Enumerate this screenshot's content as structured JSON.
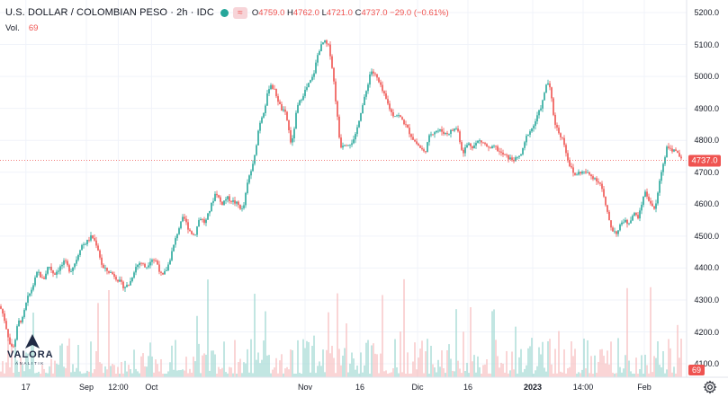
{
  "header": {
    "symbol_label": "U.S. DOLLAR / COLOMBIAN PESO · 2h · IDC",
    "compare_icon": "≈",
    "ohlc": [
      {
        "k": "O",
        "v": "4759.0"
      },
      {
        "k": "H",
        "v": "4762.0"
      },
      {
        "k": "L",
        "v": "4721.0"
      },
      {
        "k": "C",
        "v": "4737.0"
      }
    ],
    "change": "−29.0 (−0.61%)",
    "vol_label": "Vol.",
    "vol_value": "69"
  },
  "price_badge": "4737.0",
  "vol_badge": "69",
  "logo": {
    "name": "VALORA",
    "sub": "ANALITIK"
  },
  "icons": {
    "settings": "gear-icon",
    "status": "green-dot-icon",
    "compare": "compare-icon",
    "logo": "valora-logo-icon"
  },
  "colors": {
    "up": "#26a69a",
    "down": "#ef5350",
    "up_volume": "#a7dbd6",
    "down_volume": "#f7c3c4",
    "grid": "#f0f3fa",
    "last_price_line": "#ef5350"
  },
  "chart_data": {
    "type": "candlestick",
    "title": "U.S. DOLLAR / COLOMBIAN PESO · 2h · IDC",
    "ylim": [
      4080,
      5230
    ],
    "yticks": [
      "5200.0",
      "5100.0",
      "5000.0",
      "4900.0",
      "4800.0",
      "4700.0",
      "4600.0",
      "4500.0",
      "4400.0",
      "4300.0",
      "4200.0",
      "4100.0"
    ],
    "xticks": [
      {
        "label": "17",
        "bold": false
      },
      {
        "label": "Sep",
        "bold": false
      },
      {
        "label": "12:00",
        "bold": false
      },
      {
        "label": "Oct",
        "bold": false
      },
      {
        "label": "Nov",
        "bold": false
      },
      {
        "label": "16",
        "bold": false
      },
      {
        "label": "Dic",
        "bold": false
      },
      {
        "label": "16",
        "bold": false
      },
      {
        "label": "2023",
        "bold": true
      },
      {
        "label": "14:00",
        "bold": false
      },
      {
        "label": "Feb",
        "bold": false
      }
    ],
    "last_price": 4737.0,
    "last_volume": 69,
    "close_path": [
      [
        0,
        4280
      ],
      [
        4,
        4250
      ],
      [
        8,
        4200
      ],
      [
        12,
        4150
      ],
      [
        16,
        4160
      ],
      [
        20,
        4230
      ],
      [
        25,
        4240
      ],
      [
        30,
        4300
      ],
      [
        36,
        4340
      ],
      [
        42,
        4390
      ],
      [
        48,
        4360
      ],
      [
        54,
        4410
      ],
      [
        60,
        4380
      ],
      [
        66,
        4400
      ],
      [
        72,
        4420
      ],
      [
        78,
        4390
      ],
      [
        84,
        4420
      ],
      [
        90,
        4470
      ],
      [
        96,
        4480
      ],
      [
        102,
        4500
      ],
      [
        108,
        4470
      ],
      [
        114,
        4400
      ],
      [
        120,
        4390
      ],
      [
        126,
        4380
      ],
      [
        132,
        4360
      ],
      [
        138,
        4340
      ],
      [
        144,
        4350
      ],
      [
        150,
        4400
      ],
      [
        156,
        4420
      ],
      [
        162,
        4400
      ],
      [
        168,
        4430
      ],
      [
        174,
        4420
      ],
      [
        180,
        4370
      ],
      [
        186,
        4400
      ],
      [
        192,
        4460
      ],
      [
        198,
        4520
      ],
      [
        204,
        4560
      ],
      [
        210,
        4520
      ],
      [
        216,
        4500
      ],
      [
        222,
        4560
      ],
      [
        228,
        4540
      ],
      [
        234,
        4590
      ],
      [
        240,
        4640
      ],
      [
        246,
        4600
      ],
      [
        252,
        4620
      ],
      [
        258,
        4610
      ],
      [
        264,
        4600
      ],
      [
        270,
        4580
      ],
      [
        276,
        4680
      ],
      [
        282,
        4730
      ],
      [
        288,
        4850
      ],
      [
        294,
        4900
      ],
      [
        300,
        4980
      ],
      [
        306,
        4950
      ],
      [
        312,
        4900
      ],
      [
        318,
        4880
      ],
      [
        324,
        4780
      ],
      [
        330,
        4900
      ],
      [
        336,
        4940
      ],
      [
        342,
        4970
      ],
      [
        348,
        5000
      ],
      [
        354,
        5080
      ],
      [
        360,
        5110
      ],
      [
        366,
        5090
      ],
      [
        370,
        5010
      ],
      [
        374,
        4900
      ],
      [
        378,
        4780
      ],
      [
        382,
        4790
      ],
      [
        388,
        4790
      ],
      [
        394,
        4800
      ],
      [
        400,
        4880
      ],
      [
        406,
        4940
      ],
      [
        412,
        5020
      ],
      [
        418,
        5000
      ],
      [
        424,
        4960
      ],
      [
        430,
        4920
      ],
      [
        436,
        4880
      ],
      [
        442,
        4880
      ],
      [
        448,
        4860
      ],
      [
        454,
        4830
      ],
      [
        460,
        4800
      ],
      [
        466,
        4780
      ],
      [
        472,
        4760
      ],
      [
        478,
        4820
      ],
      [
        484,
        4830
      ],
      [
        490,
        4830
      ],
      [
        496,
        4820
      ],
      [
        502,
        4830
      ],
      [
        508,
        4840
      ],
      [
        514,
        4760
      ],
      [
        520,
        4790
      ],
      [
        526,
        4780
      ],
      [
        532,
        4800
      ],
      [
        538,
        4790
      ],
      [
        544,
        4770
      ],
      [
        550,
        4780
      ],
      [
        556,
        4760
      ],
      [
        562,
        4750
      ],
      [
        568,
        4740
      ],
      [
        574,
        4740
      ],
      [
        580,
        4760
      ],
      [
        586,
        4820
      ],
      [
        592,
        4840
      ],
      [
        598,
        4880
      ],
      [
        604,
        4930
      ],
      [
        608,
        4990
      ],
      [
        612,
        4950
      ],
      [
        616,
        4860
      ],
      [
        620,
        4830
      ],
      [
        626,
        4800
      ],
      [
        632,
        4730
      ],
      [
        638,
        4690
      ],
      [
        644,
        4700
      ],
      [
        650,
        4700
      ],
      [
        656,
        4690
      ],
      [
        662,
        4680
      ],
      [
        668,
        4660
      ],
      [
        674,
        4580
      ],
      [
        680,
        4520
      ],
      [
        686,
        4510
      ],
      [
        692,
        4550
      ],
      [
        698,
        4540
      ],
      [
        704,
        4570
      ],
      [
        710,
        4560
      ],
      [
        716,
        4640
      ],
      [
        722,
        4610
      ],
      [
        728,
        4580
      ],
      [
        734,
        4690
      ],
      [
        738,
        4740
      ],
      [
        742,
        4790
      ],
      [
        746,
        4760
      ],
      [
        750,
        4780
      ],
      [
        754,
        4745
      ],
      [
        758,
        4737
      ]
    ]
  }
}
